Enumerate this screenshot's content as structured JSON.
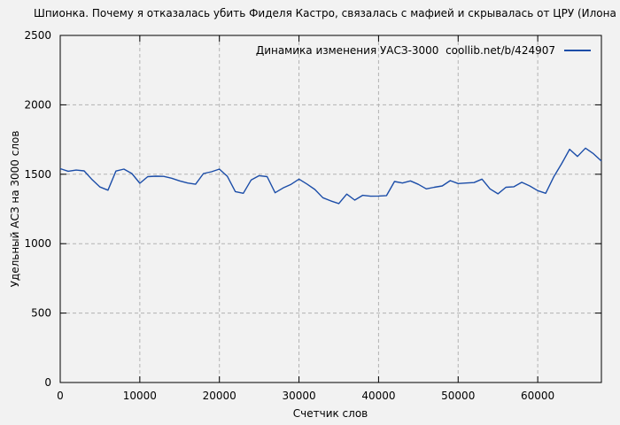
{
  "title": "Шпионка. Почему я отказалась убить Фиделя Кастро, связалась с мафией и скрывалась от ЦРУ (Илона Марита Лоренц",
  "legend": {
    "label": "Динамика изменения УАСЗ-3000  coollib.net/b/424907"
  },
  "colors": {
    "background": "#f2f2f2",
    "line": "#1b4da8",
    "grid": "#b3b3b3",
    "frame": "#000000",
    "text": "#000000"
  },
  "chart_data": {
    "type": "line",
    "title": "Шпионка. Почему я отказалась убить Фиделя Кастро, связалась с мафией и скрывалась от ЦРУ (Илона Марита Лоренц",
    "xlabel": "Счетчик слов",
    "ylabel": "Удельный АСЗ на 3000 слов",
    "legend_entry": "Динамика изменения УАСЗ-3000  coollib.net/b/424907",
    "legend_position": "top-right-inside",
    "grid": true,
    "grid_style": "dashed",
    "xlim": [
      0,
      68000
    ],
    "ylim": [
      0,
      2500
    ],
    "x_ticks": [
      0,
      10000,
      20000,
      30000,
      40000,
      50000,
      60000
    ],
    "y_ticks": [
      0,
      500,
      1000,
      1500,
      2000,
      2500
    ],
    "series": [
      {
        "name": "Динамика изменения УАСЗ-3000  coollib.net/b/424907",
        "color": "#1b4da8",
        "x_start": 0,
        "x_step": 1000,
        "values": [
          1540,
          1522,
          1530,
          1524,
          1462,
          1408,
          1385,
          1523,
          1537,
          1505,
          1435,
          1483,
          1486,
          1485,
          1471,
          1452,
          1437,
          1428,
          1505,
          1518,
          1537,
          1485,
          1375,
          1363,
          1459,
          1490,
          1483,
          1367,
          1401,
          1427,
          1465,
          1430,
          1390,
          1331,
          1308,
          1289,
          1357,
          1314,
          1348,
          1342,
          1343,
          1346,
          1448,
          1437,
          1452,
          1427,
          1395,
          1406,
          1416,
          1454,
          1433,
          1437,
          1440,
          1465,
          1395,
          1359,
          1406,
          1410,
          1442,
          1416,
          1382,
          1363,
          1480,
          1576,
          1680,
          1628,
          1688,
          1648,
          1595
        ]
      }
    ]
  }
}
